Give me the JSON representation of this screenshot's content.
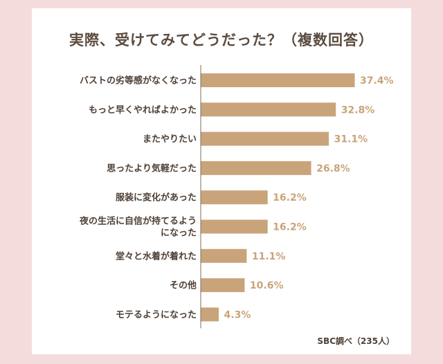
{
  "chart_data": {
    "type": "bar",
    "orientation": "horizontal",
    "title": "実際、受けてみてどうだった？（複数回答）",
    "categories": [
      "バストの劣等感がなくなった",
      "もっと早くやればよかった",
      "またやりたい",
      "思ったより気軽だった",
      "服装に変化があった",
      "夜の生活に自信が持てるようになった",
      "堂々と水着が着れた",
      "その他",
      "モテるようになった"
    ],
    "category_lines": [
      [
        "バストの劣等感がなくなった"
      ],
      [
        "もっと早くやればよかった"
      ],
      [
        "またやりたい"
      ],
      [
        "思ったより気軽だった"
      ],
      [
        "服装に変化があった"
      ],
      [
        "夜の生活に自信が持てるよう",
        "になった"
      ],
      [
        "堂々と水着が着れた"
      ],
      [
        "その他"
      ],
      [
        "モテるようになった"
      ]
    ],
    "values": [
      37.4,
      32.8,
      31.1,
      26.8,
      16.2,
      16.2,
      11.1,
      10.6,
      4.3
    ],
    "value_labels": [
      "37.4%",
      "32.8%",
      "31.1%",
      "26.8%",
      "16.2%",
      "16.2%",
      "11.1%",
      "10.6%",
      "4.3%"
    ],
    "unit": "%",
    "xlim": [
      0,
      40
    ],
    "source": "SBC調べ（235人）",
    "bar_color": "#c9a47a"
  }
}
